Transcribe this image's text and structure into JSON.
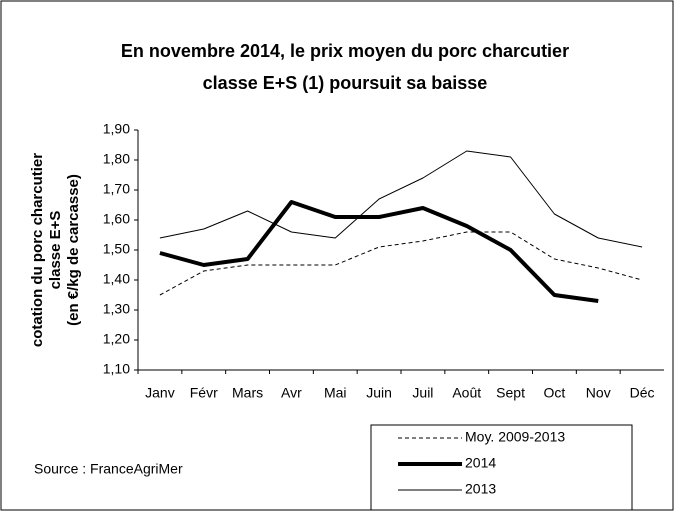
{
  "chart_data": {
    "type": "line",
    "title": [
      "En novembre 2014, le prix moyen du porc charcutier",
      "classe E+S (1) poursuit sa baisse"
    ],
    "y_label": [
      "cotation du porc charcutier",
      "classe E+S",
      "(en €/kg de carcasse)"
    ],
    "source": "Source : FranceAgriMer",
    "categories": [
      "Janv",
      "Févr",
      "Mars",
      "Avr",
      "Mai",
      "Juin",
      "Juil",
      "Août",
      "Sept",
      "Oct",
      "Nov",
      "Déc"
    ],
    "series": [
      {
        "name": "Moy. 2009-2013",
        "color": "#000000",
        "dash": "dashed",
        "width": 1,
        "values": [
          1.35,
          1.43,
          1.45,
          1.45,
          1.45,
          1.51,
          1.53,
          1.56,
          1.56,
          1.47,
          1.44,
          1.4
        ]
      },
      {
        "name": "2014",
        "color": "#000000",
        "dash": "solid",
        "width": 4,
        "values": [
          1.49,
          1.45,
          1.47,
          1.66,
          1.61,
          1.61,
          1.64,
          1.58,
          1.5,
          1.35,
          1.33,
          null
        ]
      },
      {
        "name": "2013",
        "color": "#000000",
        "dash": "solid",
        "width": 1,
        "values": [
          1.54,
          1.57,
          1.63,
          1.56,
          1.54,
          1.67,
          1.74,
          1.83,
          1.81,
          1.62,
          1.54,
          1.51
        ]
      }
    ],
    "ylim": [
      1.1,
      1.9
    ],
    "yticks": [
      {
        "value": 1.1,
        "label": "1,10"
      },
      {
        "value": 1.2,
        "label": "1,20"
      },
      {
        "value": 1.3,
        "label": "1,30"
      },
      {
        "value": 1.4,
        "label": "1,40"
      },
      {
        "value": 1.5,
        "label": "1,50"
      },
      {
        "value": 1.6,
        "label": "1,60"
      },
      {
        "value": 1.7,
        "label": "1,70"
      },
      {
        "value": 1.8,
        "label": "1,80"
      },
      {
        "value": 1.9,
        "label": "1,90"
      }
    ],
    "legend": "bottom-right"
  }
}
